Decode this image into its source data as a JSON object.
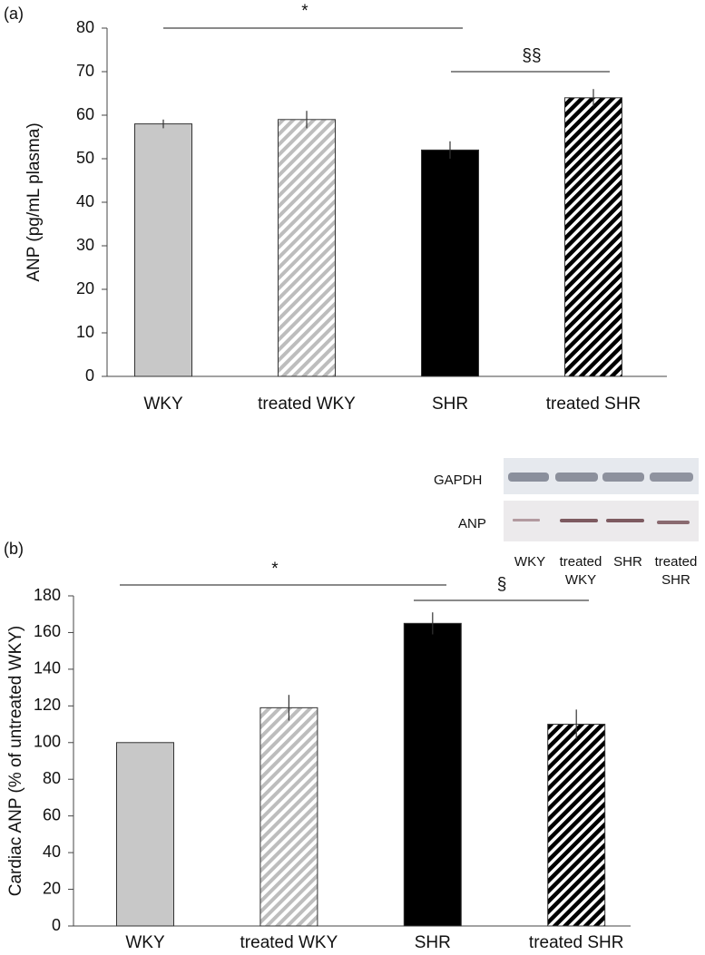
{
  "chart_data": [
    {
      "type": "bar",
      "panel_label": "(a)",
      "ylabel": "ANP (pg/mL plasma)",
      "categories": [
        "WKY",
        "treated WKY",
        "SHR",
        "treated SHR"
      ],
      "values": [
        58,
        59,
        52,
        64
      ],
      "errors": [
        1,
        2,
        2,
        2
      ],
      "colors": [
        "#c8c8c8",
        "#c8c8c8",
        "#000000",
        "#000000"
      ],
      "hatched": [
        false,
        true,
        false,
        true
      ],
      "ylim": [
        0,
        80
      ],
      "yticks": [
        0,
        10,
        20,
        30,
        40,
        50,
        60,
        70,
        80
      ],
      "annotations": [
        "*",
        "§§"
      ]
    },
    {
      "type": "bar",
      "panel_label": "(b)",
      "ylabel": "Cardiac ANP (% of untreated WKY)",
      "categories": [
        "WKY",
        "treated WKY",
        "SHR",
        "treated SHR"
      ],
      "values": [
        100,
        119,
        165,
        110
      ],
      "errors": [
        null,
        7,
        6,
        8
      ],
      "colors": [
        "#c8c8c8",
        "#c8c8c8",
        "#000000",
        "#000000"
      ],
      "hatched": [
        false,
        true,
        false,
        true
      ],
      "ylim": [
        0,
        180
      ],
      "yticks": [
        0,
        20,
        40,
        60,
        80,
        100,
        120,
        140,
        160,
        180
      ],
      "annotations": [
        "*",
        "§"
      ]
    }
  ],
  "blot": {
    "rows": [
      "GAPDH",
      "ANP"
    ],
    "lanes": [
      [
        "WKY"
      ],
      [
        "treated",
        "WKY"
      ],
      [
        "SHR"
      ],
      [
        "treated",
        "SHR"
      ]
    ]
  }
}
